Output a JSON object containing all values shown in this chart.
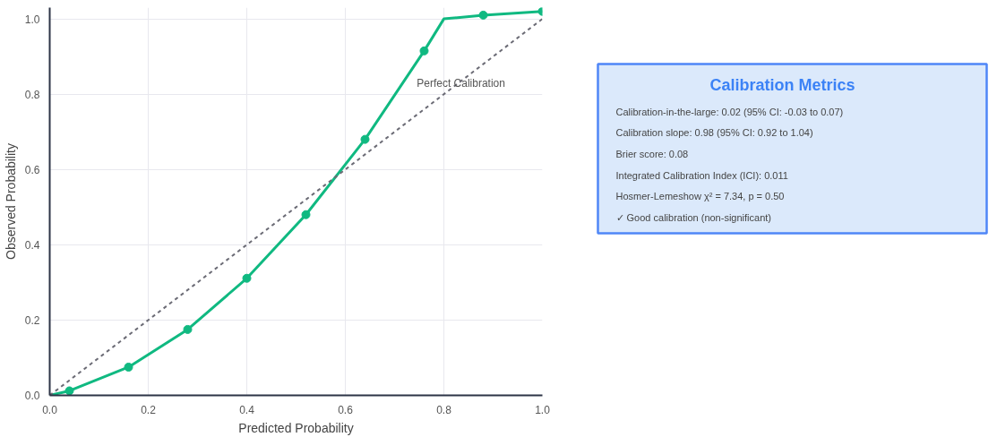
{
  "chart_data": [
    {
      "type": "line",
      "xlabel": "Predicted Probability",
      "ylabel": "Observed Probability",
      "xlim": [
        0,
        1
      ],
      "ylim": [
        0,
        1.03
      ],
      "xticks": [
        {
          "value": 0,
          "label": "0.0"
        },
        0.2,
        0.4,
        0.6,
        0.8,
        {
          "value": 1,
          "label": "1.0"
        }
      ],
      "yticks": [
        {
          "value": 0,
          "label": "0.0"
        },
        0.2,
        0.4,
        0.6,
        0.8,
        {
          "value": 1,
          "label": "1.0"
        }
      ],
      "grid": true,
      "series": [
        {
          "type": "line",
          "color": "#10b981",
          "x": [
            0,
            0.04,
            0.16,
            0.28,
            0.4,
            0.52,
            0.64,
            0.76,
            0.8,
            0.88,
            1.0
          ],
          "values": [
            0,
            0.012,
            0.075,
            0.175,
            0.311,
            0.48,
            0.68,
            0.915,
            1.0,
            1.01,
            1.02
          ],
          "line_style": "solid"
        },
        {
          "type": "scatter",
          "color": "#10b981",
          "marker": "circle",
          "x": [
            0.04,
            0.16,
            0.28,
            0.4,
            0.52,
            0.64,
            0.76,
            0.88,
            1.0
          ],
          "values": [
            0.012,
            0.075,
            0.175,
            0.311,
            0.48,
            0.68,
            0.915,
            1.01,
            1.02
          ]
        },
        {
          "type": "line",
          "name": "Perfect Calibration",
          "color": "#6b6b75",
          "x": [
            0,
            1
          ],
          "values": [
            0,
            1
          ],
          "line_style": "dashed"
        }
      ]
    },
    {
      "type": "other",
      "title": "Calibration Metrics",
      "annotations": [
        "Calibration-in-the-large: 0.02 (95% CI: -0.03 to 0.07)",
        "Calibration slope: 0.98 (95% CI: 0.92 to 1.04)",
        "Brier score: 0.08",
        "Integrated Calibration Index (ICI): 0.011",
        "Hosmer-Lemeshow χ² = 7.34, p = 0.50",
        "✓ Good calibration (non-significant)"
      ]
    }
  ]
}
